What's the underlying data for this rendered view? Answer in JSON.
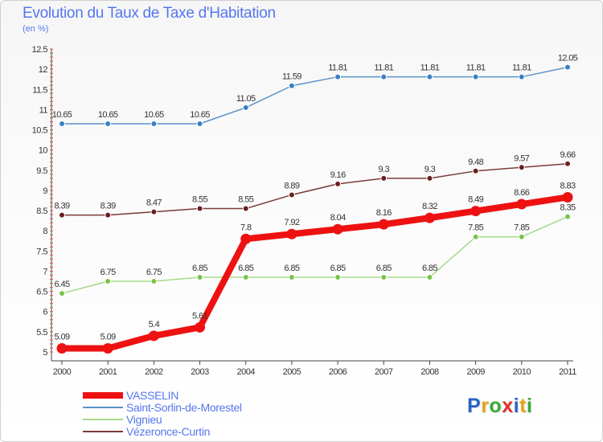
{
  "header": {
    "title": "Evolution du Taux de Taxe d'Habitation",
    "subtitle": "(en %)"
  },
  "logo": {
    "text": "Proxiti",
    "letter_colors": [
      "#2a62c9",
      "#e8a317",
      "#3aa935",
      "#e0312c",
      "#2a62c9",
      "#e8a317",
      "#3aa935"
    ]
  },
  "chart_data": {
    "type": "line",
    "x": [
      "2000",
      "2001",
      "2002",
      "2003",
      "2004",
      "2005",
      "2006",
      "2007",
      "2008",
      "2009",
      "2010",
      "2011"
    ],
    "ylim": [
      5,
      12.5
    ],
    "yticks": [
      "5",
      "5.5",
      "6",
      "6.5",
      "7",
      "7.5",
      "8",
      "8.5",
      "9",
      "9.5",
      "10",
      "10.5",
      "11",
      "11.5",
      "12",
      "12.5"
    ],
    "grid": false,
    "legend_position": "bottom",
    "series": [
      {
        "name": "Saint-Sorlin-de-Morestel",
        "color": "#5b94c8",
        "marker": "#3a7fc4",
        "values": [
          10.65,
          10.65,
          10.65,
          10.65,
          11.05,
          11.59,
          11.81,
          11.81,
          11.81,
          11.81,
          11.81,
          12.05
        ],
        "labels": [
          "10.65",
          "10.65",
          "10.65",
          "10.65",
          "11.05",
          "11.59",
          "11.81",
          "11.81",
          "11.81",
          "11.81",
          "11.81",
          "12.05"
        ]
      },
      {
        "name": "Vézeronce-Curtin",
        "color": "#7a3a3a",
        "marker": "#6b1f1f",
        "values": [
          8.39,
          8.39,
          8.47,
          8.55,
          8.55,
          8.89,
          9.16,
          9.3,
          9.3,
          9.48,
          9.57,
          9.66
        ],
        "labels": [
          "8.39",
          "8.39",
          "8.47",
          "8.55",
          "8.55",
          "8.89",
          "9.16",
          "9.3",
          "9.3",
          "9.48",
          "9.57",
          "9.66"
        ]
      },
      {
        "name": "Vignieu",
        "color": "#a6d98a",
        "marker": "#7cc24a",
        "values": [
          6.45,
          6.75,
          6.75,
          6.85,
          6.85,
          6.85,
          6.85,
          6.85,
          6.85,
          7.85,
          7.85,
          8.35
        ],
        "labels": [
          "6.45",
          "6.75",
          "6.75",
          "6.85",
          "6.85",
          "6.85",
          "6.85",
          "6.85",
          "6.85",
          "7.85",
          "7.85",
          "8.35"
        ]
      },
      {
        "name": "VASSELIN",
        "color": "#ee1111",
        "marker": "#ee1111",
        "values": [
          5.09,
          5.09,
          5.4,
          5.61,
          7.8,
          7.92,
          8.04,
          8.16,
          8.32,
          8.49,
          8.66,
          8.83
        ],
        "labels": [
          "5.09",
          "5.09",
          "5.4",
          "5.61",
          "7.8",
          "7.92",
          "8.04",
          "8.16",
          "8.32",
          "8.49",
          "8.66",
          "8.83"
        ]
      }
    ],
    "legend_order": [
      "VASSELIN",
      "Saint-Sorlin-de-Morestel",
      "Vignieu",
      "Vézeronce-Curtin"
    ]
  }
}
